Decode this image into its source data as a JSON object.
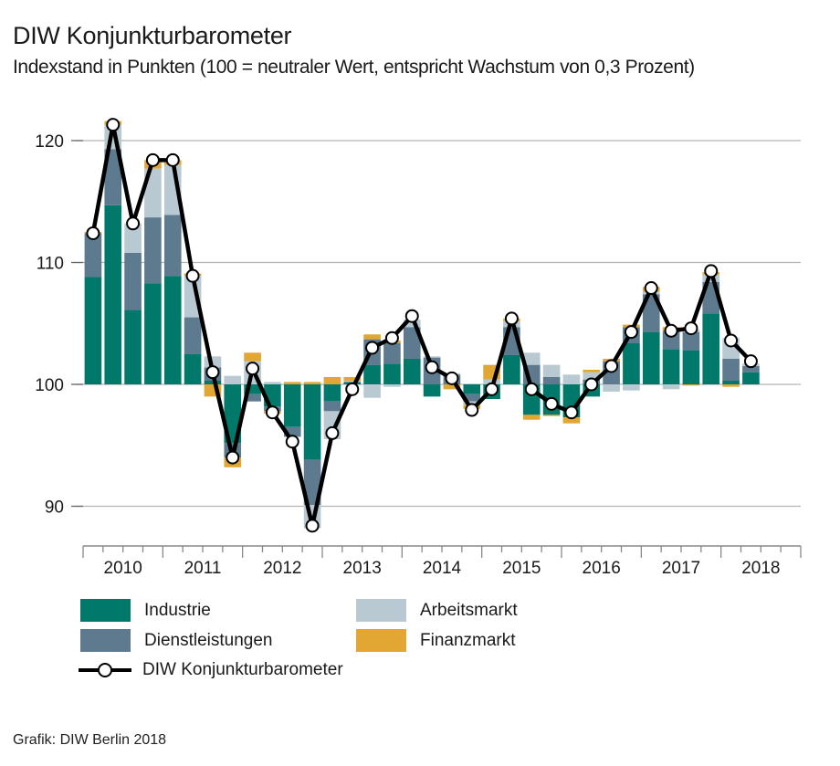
{
  "header": {
    "title": "DIW Konjunkturbarometer",
    "subtitle": "Indexstand in Punkten (100 = neutraler Wert, entspricht Wachstum von 0,3 Prozent)"
  },
  "footer": {
    "source": "Grafik: DIW Berlin 2018"
  },
  "legend": [
    {
      "key": "industrie",
      "label": "Industrie",
      "color": "#00796B"
    },
    {
      "key": "dienst",
      "label": "Dienstleistungen",
      "color": "#5E7A8E"
    },
    {
      "key": "arbeit",
      "label": "Arbeitsmarkt",
      "color": "#B8C9D2"
    },
    {
      "key": "finanz",
      "label": "Finanzmarkt",
      "color": "#E2A633"
    },
    {
      "key": "barometer",
      "label": "DIW Konjunkturbarometer",
      "color": "#000000"
    }
  ],
  "chart_data": {
    "type": "bar",
    "stacked": true,
    "baseline": 100,
    "title": "DIW Konjunkturbarometer",
    "subtitle": "Indexstand in Punkten (100 = neutraler Wert, entspricht Wachstum von 0,3 Prozent)",
    "xlabel": "",
    "ylabel": "",
    "ylim": [
      87,
      122
    ],
    "yticks": [
      90,
      100,
      110,
      120
    ],
    "grid": true,
    "legend_position": "bottom",
    "year_labels": [
      "2010",
      "2011",
      "2012",
      "2013",
      "2014",
      "2015",
      "2016",
      "2017",
      "2018"
    ],
    "categories": [
      "2010Q1",
      "2010Q2",
      "2010Q3",
      "2010Q4",
      "2011Q1",
      "2011Q2",
      "2011Q3",
      "2011Q4",
      "2012Q1",
      "2012Q2",
      "2012Q3",
      "2012Q4",
      "2013Q1",
      "2013Q2",
      "2013Q3",
      "2013Q4",
      "2014Q1",
      "2014Q2",
      "2014Q3",
      "2014Q4",
      "2015Q1",
      "2015Q2",
      "2015Q3",
      "2015Q4",
      "2016Q1",
      "2016Q2",
      "2016Q3",
      "2016Q4",
      "2017Q1",
      "2017Q2",
      "2017Q3",
      "2017Q4",
      "2018Q1",
      "2018Q2"
    ],
    "series": [
      {
        "name": "Industrie",
        "key": "industrie",
        "color": "#00796B",
        "values": [
          8.8,
          14.7,
          6.1,
          8.3,
          8.9,
          2.5,
          0.3,
          -4.8,
          -0.8,
          -1.8,
          -3.5,
          -6.2,
          -1.4,
          0.2,
          1.6,
          1.7,
          2.1,
          -1.0,
          0.0,
          -0.8,
          -1.2,
          2.4,
          -2.5,
          -2.5,
          -2.7,
          -1.0,
          0.0,
          3.4,
          4.3,
          2.9,
          2.8,
          5.8,
          0.3,
          1.0
        ]
      },
      {
        "name": "Dienstleistungen",
        "key": "dienst",
        "color": "#5E7A8E",
        "values": [
          3.6,
          4.6,
          4.7,
          5.4,
          5.0,
          3.0,
          1.1,
          -1.2,
          -0.6,
          -0.4,
          -0.8,
          -3.7,
          -0.8,
          0.0,
          2.1,
          1.7,
          2.6,
          2.2,
          0.8,
          -0.6,
          0.0,
          2.3,
          1.6,
          0.6,
          0.0,
          0.4,
          1.9,
          1.3,
          3.1,
          1.5,
          1.5,
          2.6,
          1.8,
          0.5
        ]
      },
      {
        "name": "Arbeitsmarkt",
        "key": "arbeit",
        "color": "#B8C9D2",
        "values": [
          0.0,
          2.0,
          2.4,
          4.0,
          4.1,
          3.4,
          0.9,
          0.7,
          1.9,
          0.2,
          0.0,
          -1.9,
          -2.3,
          0.1,
          -1.1,
          -0.2,
          0.6,
          0.1,
          0.1,
          -0.3,
          0.4,
          0.5,
          1.0,
          1.0,
          0.8,
          0.6,
          -0.6,
          -0.5,
          0.2,
          -0.4,
          0.2,
          0.6,
          1.7,
          0.2
        ]
      },
      {
        "name": "Finanzmarkt",
        "key": "finanz",
        "color": "#E2A633",
        "values": [
          0.1,
          0.3,
          0.0,
          0.7,
          0.4,
          0.2,
          -1.0,
          -0.8,
          0.7,
          -0.2,
          0.2,
          0.2,
          0.6,
          0.3,
          0.4,
          0.2,
          0.0,
          0.0,
          -0.4,
          -0.3,
          1.2,
          0.2,
          -0.4,
          -0.1,
          -0.5,
          0.2,
          0.2,
          0.2,
          0.4,
          0.3,
          -0.1,
          0.2,
          -0.2,
          0.0
        ]
      }
    ],
    "line": {
      "name": "DIW Konjunkturbarometer",
      "color": "#000000",
      "values": [
        112.4,
        121.3,
        113.2,
        118.4,
        118.4,
        108.9,
        101.0,
        94.0,
        101.3,
        97.7,
        95.3,
        88.4,
        96.0,
        99.6,
        103.0,
        103.8,
        105.6,
        101.4,
        100.5,
        97.9,
        99.6,
        105.4,
        99.6,
        98.4,
        97.7,
        100.0,
        101.5,
        104.3,
        107.9,
        104.4,
        104.6,
        109.3,
        103.6,
        101.9
      ]
    }
  }
}
